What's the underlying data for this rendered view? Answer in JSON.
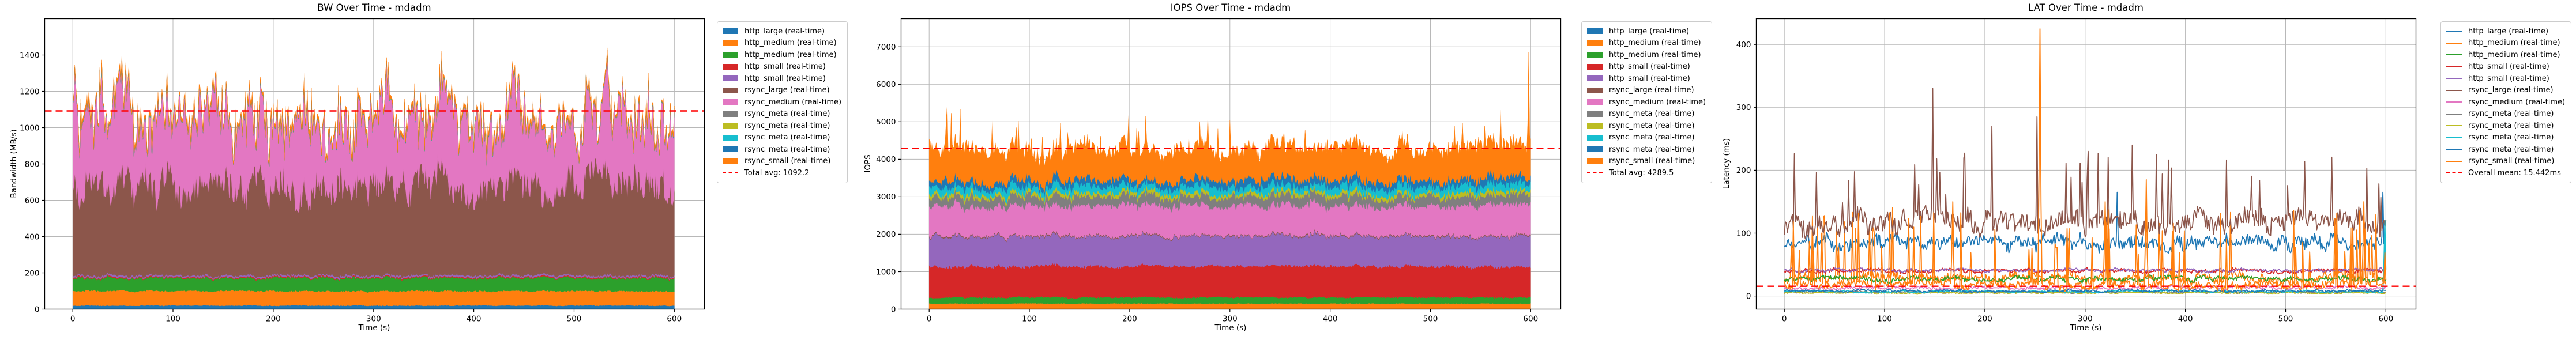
{
  "chart_data": [
    {
      "type": "area",
      "stacked": true,
      "title": "BW Over Time - mdadm",
      "xlabel": "Time (s)",
      "ylabel": "Bandwidth (MB/s)",
      "x_range": [
        0,
        600
      ],
      "xlim": [
        -28,
        630
      ],
      "ylim": [
        0,
        1600
      ],
      "xticks": [
        0,
        100,
        200,
        300,
        400,
        500,
        600
      ],
      "yticks": [
        0,
        200,
        400,
        600,
        800,
        1000,
        1200,
        1400
      ],
      "grid": true,
      "legend_position": "right-outside",
      "legend_style": "patch",
      "avg_line": {
        "value": 1092.2,
        "label": "Total avg: 1092.2",
        "color": "#ff0000",
        "style": "dashed"
      },
      "series": [
        {
          "name": "http_large (real-time)",
          "color": "#1f77b4",
          "mean": 20,
          "amp": 3
        },
        {
          "name": "http_medium (real-time)",
          "color": "#ff7f0e",
          "mean": 80,
          "amp": 6
        },
        {
          "name": "http_medium (real-time)",
          "color": "#2ca02c",
          "mean": 72,
          "amp": 13
        },
        {
          "name": "http_small (real-time)",
          "color": "#d62728",
          "mean": 6,
          "amp": 2
        },
        {
          "name": "http_small (real-time)",
          "color": "#9467bd",
          "mean": 9,
          "amp": 3
        },
        {
          "name": "rsync_large (real-time)",
          "color": "#8c564b",
          "mean": 495,
          "amp": 150
        },
        {
          "name": "rsync_medium (real-time)",
          "color": "#e377c2",
          "mean": 382,
          "amp": 235
        },
        {
          "name": "rsync_meta (real-time)",
          "color": "#7f7f7f",
          "mean": 2,
          "amp": 1
        },
        {
          "name": "rsync_meta (real-time)",
          "color": "#bcbd22",
          "mean": 1.5,
          "amp": 0.8
        },
        {
          "name": "rsync_meta (real-time)",
          "color": "#17becf",
          "mean": 1.5,
          "amp": 0.8
        },
        {
          "name": "rsync_meta (real-time)",
          "color": "#1f77b4",
          "mean": 1.5,
          "amp": 0.8
        },
        {
          "name": "rsync_small (real-time)",
          "color": "#ff7f0e",
          "mean": 16,
          "amp": 12
        }
      ]
    },
    {
      "type": "area",
      "stacked": true,
      "title": "IOPS Over Time - mdadm",
      "xlabel": "Time (s)",
      "ylabel": "IOPS",
      "x_range": [
        0,
        600
      ],
      "xlim": [
        -28,
        630
      ],
      "ylim": [
        0,
        7750
      ],
      "xticks": [
        0,
        100,
        200,
        300,
        400,
        500,
        600
      ],
      "yticks": [
        0,
        1000,
        2000,
        3000,
        4000,
        5000,
        6000,
        7000
      ],
      "grid": true,
      "legend_position": "right-outside",
      "legend_style": "patch",
      "avg_line": {
        "value": 4289.5,
        "label": "Total avg: 4289.5",
        "color": "#ff0000",
        "style": "dashed"
      },
      "series": [
        {
          "name": "http_large (real-time)",
          "color": "#1f77b4",
          "mean": 10,
          "amp": 3
        },
        {
          "name": "http_medium (real-time)",
          "color": "#ff7f0e",
          "mean": 140,
          "amp": 12
        },
        {
          "name": "http_medium (real-time)",
          "color": "#2ca02c",
          "mean": 165,
          "amp": 30
        },
        {
          "name": "http_small (real-time)",
          "color": "#d62728",
          "mean": 830,
          "amp": 70
        },
        {
          "name": "http_small (real-time)",
          "color": "#9467bd",
          "mean": 800,
          "amp": 90
        },
        {
          "name": "rsync_large (real-time)",
          "color": "#8c564b",
          "mean": 25,
          "amp": 10
        },
        {
          "name": "rsync_medium (real-time)",
          "color": "#e377c2",
          "mean": 790,
          "amp": 130
        },
        {
          "name": "rsync_meta (real-time)",
          "color": "#7f7f7f",
          "mean": 240,
          "amp": 90
        },
        {
          "name": "rsync_meta (real-time)",
          "color": "#bcbd22",
          "mean": 90,
          "amp": 50
        },
        {
          "name": "rsync_meta (real-time)",
          "color": "#17becf",
          "mean": 190,
          "amp": 90
        },
        {
          "name": "rsync_meta (real-time)",
          "color": "#1f77b4",
          "mean": 170,
          "amp": 90
        },
        {
          "name": "rsync_small (real-time)",
          "color": "#ff7f0e",
          "mean": 840,
          "amp": 280,
          "spike_prob": 0.05,
          "spike_max": 900,
          "events": [
            [
              18,
              2000
            ],
            [
              598,
              3400
            ]
          ]
        }
      ]
    },
    {
      "type": "line",
      "stacked": false,
      "title": "LAT Over Time - mdadm",
      "xlabel": "Time (s)",
      "ylabel": "Latency (ms)",
      "x_range": [
        0,
        600
      ],
      "xlim": [
        -28,
        630
      ],
      "ylim": [
        -21,
        441
      ],
      "xticks": [
        0,
        100,
        200,
        300,
        400,
        500,
        600
      ],
      "yticks": [
        0,
        100,
        200,
        300,
        400
      ],
      "grid": true,
      "legend_position": "right-outside",
      "legend_style": "line",
      "avg_line": {
        "value": 15.442,
        "label": "Overall mean: 15.442ms",
        "color": "#ff0000",
        "style": "dashed"
      },
      "series": [
        {
          "name": "http_large (real-time)",
          "color": "#1f77b4",
          "mean": 85,
          "amp": 17,
          "events": [
            [
              332,
              165
            ],
            [
              597,
              165
            ]
          ]
        },
        {
          "name": "http_medium (real-time)",
          "color": "#ff7f0e",
          "mean": 28,
          "amp": 12,
          "spike_prob": 0.04,
          "spike_max": 110
        },
        {
          "name": "http_medium (real-time)",
          "color": "#2ca02c",
          "mean": 27,
          "amp": 6
        },
        {
          "name": "http_small (real-time)",
          "color": "#d62728",
          "mean": 40,
          "amp": 5
        },
        {
          "name": "http_small (real-time)",
          "color": "#9467bd",
          "mean": 41,
          "amp": 4
        },
        {
          "name": "rsync_large (real-time)",
          "color": "#8c564b",
          "mean": 118,
          "amp": 26,
          "spike_prob": 0.05,
          "spike_max": 110,
          "events": [
            [
              148,
              330
            ],
            [
              207,
              270
            ],
            [
              252,
              285
            ],
            [
              303,
              230
            ],
            [
              347,
              240
            ],
            [
              371,
              225
            ]
          ]
        },
        {
          "name": "rsync_medium (real-time)",
          "color": "#e377c2",
          "mean": 13,
          "amp": 4
        },
        {
          "name": "rsync_meta (real-time)",
          "color": "#7f7f7f",
          "mean": 6,
          "amp": 2
        },
        {
          "name": "rsync_meta (real-time)",
          "color": "#bcbd22",
          "mean": 5,
          "amp": 2
        },
        {
          "name": "rsync_meta (real-time)",
          "color": "#17becf",
          "mean": 7,
          "amp": 2.5,
          "events": [
            [
              599,
              120
            ]
          ]
        },
        {
          "name": "rsync_meta (real-time)",
          "color": "#1f77b4",
          "mean": 8,
          "amp": 3
        },
        {
          "name": "rsync_small (real-time)",
          "color": "#ff7f0e",
          "mean": 17,
          "amp": 10,
          "spike_prob": 0.06,
          "spike_max": 120,
          "events": [
            [
              168,
              150
            ],
            [
              255,
              425
            ],
            [
              320,
              150
            ],
            [
              361,
              185
            ],
            [
              578,
              150
            ]
          ]
        }
      ]
    }
  ]
}
